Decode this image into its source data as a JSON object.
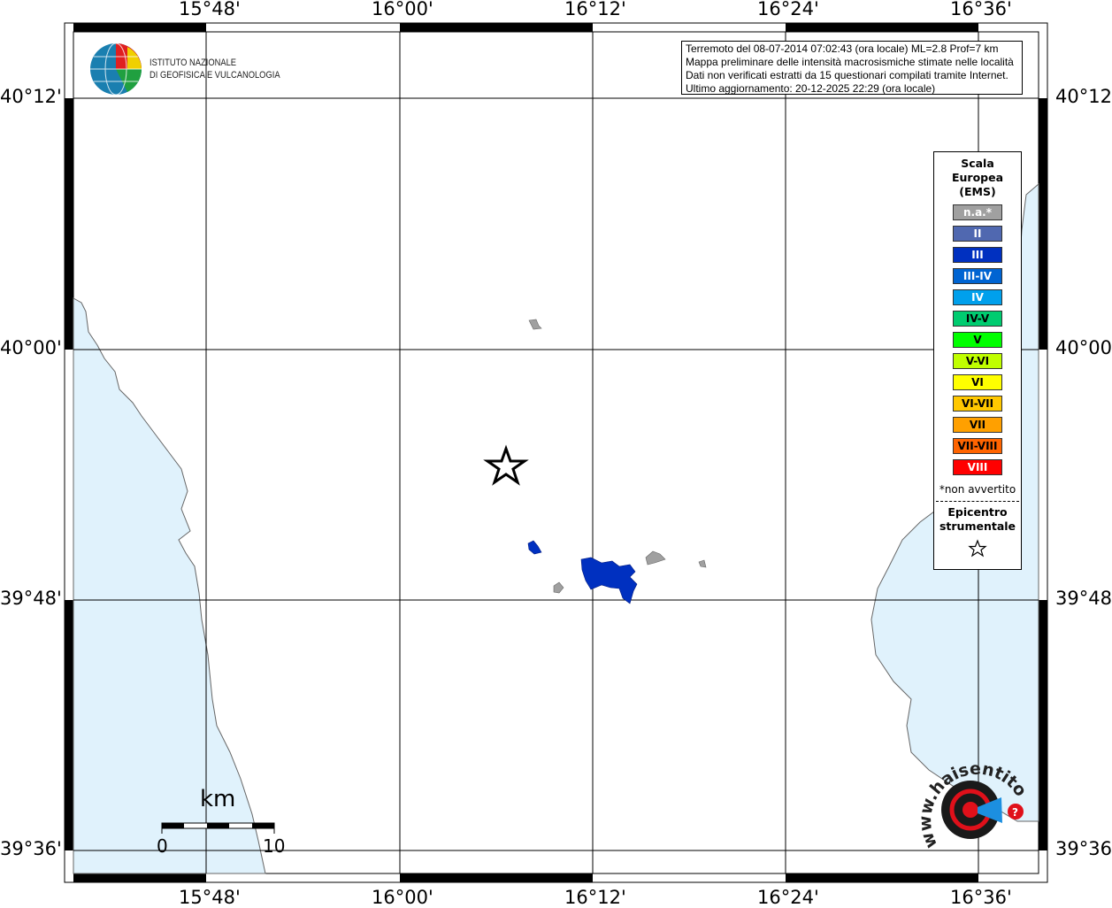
{
  "map": {
    "lon_ticks": [
      "15°48'",
      "16°00'",
      "16°12'",
      "16°24'",
      "16°36'"
    ],
    "lat_ticks": [
      "40°12'",
      "40°00'",
      "39°48'",
      "39°36'"
    ],
    "colors": {
      "sea": "#e0f2fc",
      "land": "#ffffff",
      "grid": "#000000",
      "felt_iii": "#0030c0",
      "not_felt": "#a0a0a0"
    }
  },
  "logo": {
    "line1": "ISTITUTO NAZIONALE",
    "line2": "DI GEOFISICA E VULCANOLOGIA",
    "mark": "INGV"
  },
  "info": {
    "line1": "Terremoto del 08-07-2014 07:02:43 (ora locale) ML=2.8 Prof=7 km",
    "line2": "Mappa preliminare delle intensità macrosismiche stimate nelle località",
    "line3": "Dati non verificati estratti da 15 questionari compilati tramite Internet.",
    "line4": "Ultimo aggiornamento: 20-12-2025 22:29 (ora locale)"
  },
  "legend": {
    "title1": "Scala",
    "title2": "Europea",
    "title3": "(EMS)",
    "items": [
      {
        "label": "n.a.*",
        "color": "#a0a0a0",
        "text": "#ffffff"
      },
      {
        "label": "II",
        "color": "#5068b0",
        "text": "#ffffff"
      },
      {
        "label": "III",
        "color": "#0030c0",
        "text": "#ffffff"
      },
      {
        "label": "III-IV",
        "color": "#0064d2",
        "text": "#ffffff"
      },
      {
        "label": "IV",
        "color": "#00a0ec",
        "text": "#ffffff"
      },
      {
        "label": "IV-V",
        "color": "#00cc70",
        "text": "#000000"
      },
      {
        "label": "V",
        "color": "#00ff00",
        "text": "#000000"
      },
      {
        "label": "V-VI",
        "color": "#c0ff00",
        "text": "#000000"
      },
      {
        "label": "VI",
        "color": "#ffff00",
        "text": "#000000"
      },
      {
        "label": "VI-VII",
        "color": "#ffc800",
        "text": "#000000"
      },
      {
        "label": "VII",
        "color": "#ffa000",
        "text": "#000000"
      },
      {
        "label": "VII-VIII",
        "color": "#ff6400",
        "text": "#000000"
      },
      {
        "label": "VIII",
        "color": "#ff0000",
        "text": "#ffffff"
      }
    ],
    "note": "*non avvertito",
    "epicenter1": "Epicentro",
    "epicenter2": "strumentale",
    "epicenter_icon": "star-outline"
  },
  "scalebar": {
    "unit": "km",
    "min": "0",
    "max": "10"
  },
  "badge": {
    "text": "www.haisentitoilterremoto.it"
  }
}
